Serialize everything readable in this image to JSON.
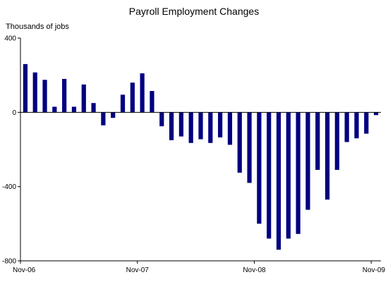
{
  "chart_data": {
    "type": "bar",
    "title": "Payroll Employment  Changes",
    "ylabel": "Thousands of jobs",
    "xlabel": "",
    "ylim": [
      -800,
      400
    ],
    "yticks": [
      "400",
      "0",
      "-400",
      "-800"
    ],
    "xticks": [
      "Nov-06",
      "Nov-07",
      "Nov-08",
      "Nov-09"
    ],
    "grid": false,
    "categories": [
      "Nov-06",
      "Dec-06",
      "Jan-07",
      "Feb-07",
      "Mar-07",
      "Apr-07",
      "May-07",
      "Jun-07",
      "Jul-07",
      "Aug-07",
      "Sep-07",
      "Oct-07",
      "Nov-07",
      "Dec-07",
      "Jan-08",
      "Feb-08",
      "Mar-08",
      "Apr-08",
      "May-08",
      "Jun-08",
      "Jul-08",
      "Aug-08",
      "Sep-08",
      "Oct-08",
      "Nov-08",
      "Dec-08",
      "Jan-09",
      "Feb-09",
      "Mar-09",
      "Apr-09",
      "May-09",
      "Jun-09",
      "Jul-09",
      "Aug-09",
      "Sep-09",
      "Oct-09",
      "Nov-09"
    ],
    "values": [
      260,
      215,
      175,
      30,
      180,
      30,
      150,
      50,
      -70,
      -30,
      95,
      160,
      210,
      115,
      -75,
      -150,
      -130,
      -165,
      -145,
      -165,
      -135,
      -175,
      -325,
      -380,
      -600,
      -680,
      -740,
      -680,
      -655,
      -525,
      -310,
      -470,
      -310,
      -160,
      -140,
      -115,
      -15
    ],
    "color": "#000080"
  }
}
